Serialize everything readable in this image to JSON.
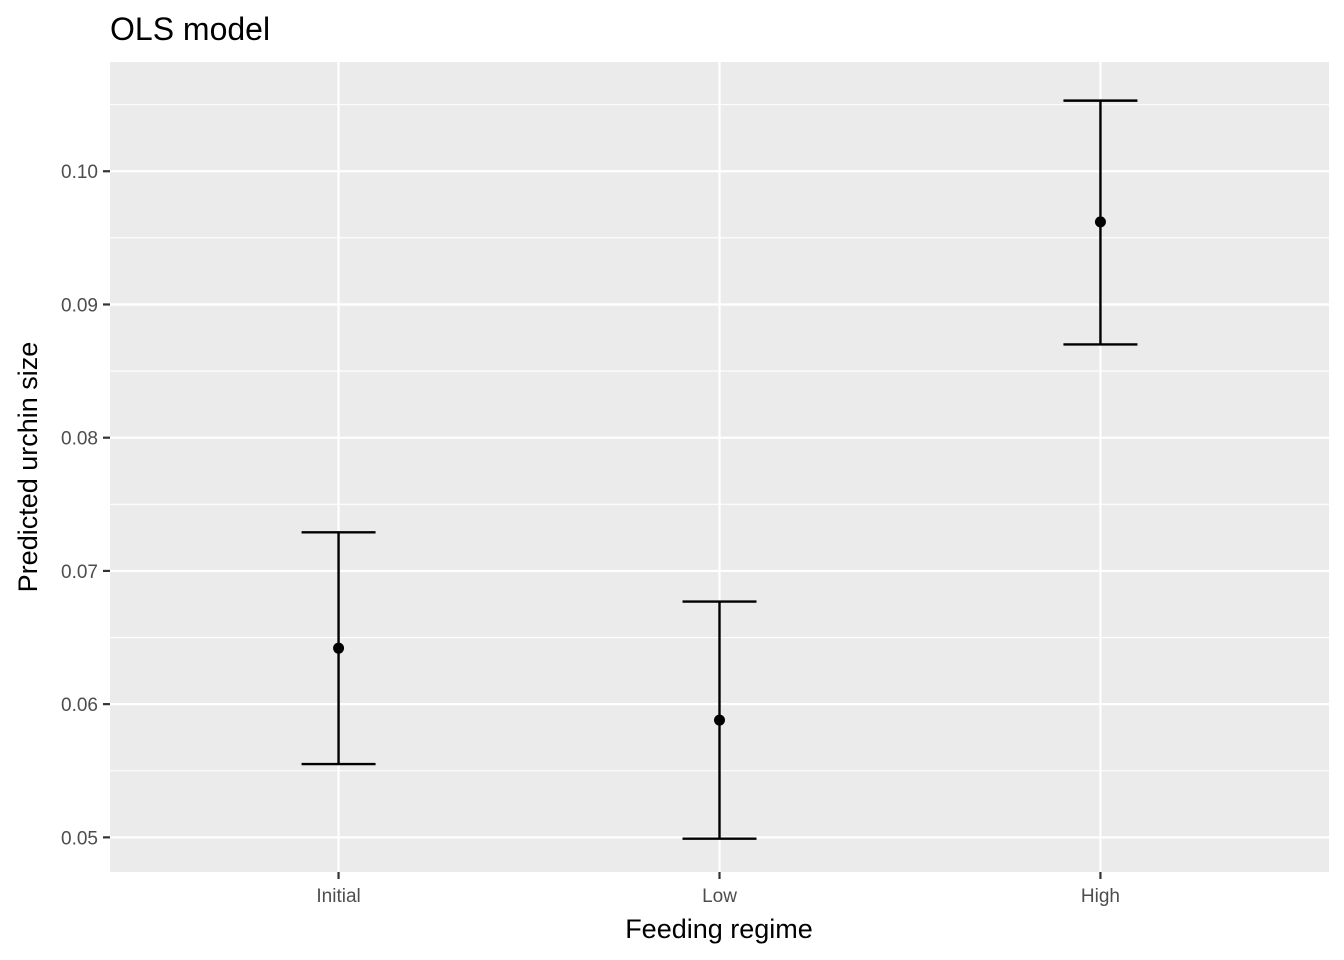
{
  "chart_data": {
    "type": "errorbar",
    "title": "OLS model",
    "xlabel": "Feeding regime",
    "ylabel": "Predicted urchin size",
    "categories": [
      "Initial",
      "Low",
      "High"
    ],
    "estimates": [
      0.0642,
      0.0588,
      0.0962
    ],
    "lower": [
      0.0555,
      0.0499,
      0.087
    ],
    "upper": [
      0.0729,
      0.0677,
      0.1053
    ],
    "ylim": [
      0.0474,
      0.1082
    ],
    "yticks": [
      0.05,
      0.06,
      0.07,
      0.08,
      0.09,
      0.1
    ],
    "ytick_labels": [
      "0.05",
      "0.06",
      "0.07",
      "0.08",
      "0.09",
      "0.10"
    ],
    "grid": true,
    "colors": {
      "panel": "#EBEBEB",
      "grid": "#FFFFFF",
      "marks": "#000000"
    }
  }
}
